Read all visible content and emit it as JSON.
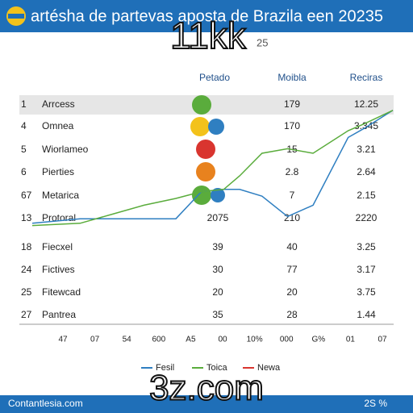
{
  "header": {
    "title": "artésha de partevas aposta de Brazila een 20235"
  },
  "overlay": {
    "big": "11kk",
    "small": "25",
    "bottom": "3z.com"
  },
  "table": {
    "columns": [
      "Petado",
      "Moibla",
      "Reciras"
    ],
    "rows": [
      {
        "num": "1",
        "name": "Arrcess",
        "moibla": "179",
        "reciras": "12.25"
      },
      {
        "num": "4",
        "name": "Omnea",
        "moibla": "170",
        "reciras": "3.345"
      },
      {
        "num": "5",
        "name": "Wiorlameo",
        "moibla": "15",
        "reciras": "3.21"
      },
      {
        "num": "6",
        "name": "Pierties",
        "moibla": "2.8",
        "reciras": "2.64"
      },
      {
        "num": "67",
        "name": "Metarica",
        "moibla": "7",
        "reciras": "2.15"
      },
      {
        "num": "13",
        "name": "Protoral",
        "petado": "2075",
        "moibla": "210",
        "reciras": "2220"
      },
      {
        "num": "18",
        "name": "Fiecxel",
        "petado": "39",
        "moibla": "40",
        "reciras": "3.25"
      },
      {
        "num": "24",
        "name": "Fictives",
        "petado": "30",
        "moibla": "77",
        "reciras": "3.17"
      },
      {
        "num": "25",
        "name": "Fitewcad",
        "petado": "20",
        "moibla": "20",
        "reciras": "3.75"
      },
      {
        "num": "27",
        "name": "Pantrea",
        "petado": "35",
        "moibla": "28",
        "reciras": "1.44"
      }
    ]
  },
  "chart": {
    "type": "line",
    "xtick_labels": [
      "47",
      "07",
      "54",
      "600",
      "A5",
      "00",
      "10%",
      "000",
      "G%",
      "01",
      "07"
    ],
    "xlim": [
      -1,
      10.3
    ],
    "ylim": [
      0,
      100
    ],
    "x": [
      -1,
      0.5,
      1.5,
      2.5,
      3.5,
      4.3,
      5,
      5.5,
      6.2,
      7,
      7.8,
      8.9,
      9.4,
      10.3
    ],
    "series": [
      {
        "name": "Fesil",
        "color": "#2f7fc1",
        "values": [
          44,
          46,
          46,
          46,
          46,
          58,
          59,
          59,
          56,
          47,
          52,
          82,
          86,
          94
        ]
      },
      {
        "name": "Toica",
        "color": "#5aac3c",
        "values": [
          43,
          44,
          48,
          52,
          55,
          58,
          59,
          65,
          75,
          77,
          75,
          85,
          88,
          94
        ]
      },
      {
        "name": "Newa",
        "color": "#d9352f"
      }
    ]
  },
  "footer": {
    "left": "Contantlesia.com",
    "right": "2S %"
  }
}
